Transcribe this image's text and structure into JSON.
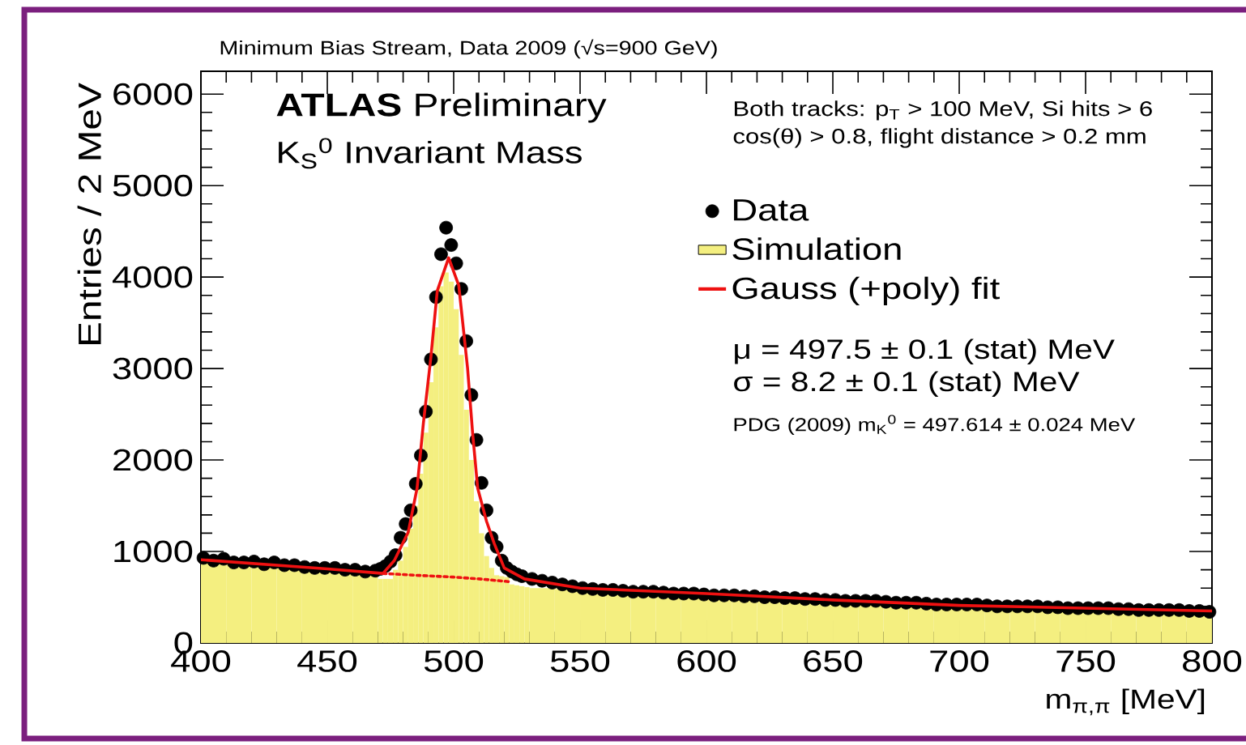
{
  "chart_data": {
    "type": "scatter",
    "title": "Minimum Bias Stream, Data 2009 (√s=900 GeV)",
    "xlabel": "m$_{π,π}$ [MeV]",
    "ylabel": "Entries / 2 MeV",
    "annotations": [
      "**ATLAS** Preliminary",
      "K$_{S}$$^{0}$ Invariant Mass",
      "Both tracks: p$_{T}$ > 100 MeV, Si hits > 6",
      "cos(θ) > 0.8, flight distance > 0.2 mm",
      "μ = 497.5 ± 0.1 (stat) MeV",
      "σ = 8.2 ± 0.1 (stat) MeV",
      "PDG (2009) m$_{K}$$^{0}$ = 497.614 ± 0.024 MeV"
    ],
    "xlim": [
      400,
      800
    ],
    "ylim": [
      0,
      6250
    ],
    "xticks": [
      400,
      450,
      500,
      550,
      600,
      650,
      700,
      750,
      800
    ],
    "yticks": [
      0,
      1000,
      2000,
      3000,
      4000,
      5000,
      6000
    ],
    "legend": "top right",
    "series": [
      {
        "name": "Data",
        "color": "#000000",
        "marker": "circle",
        "x": [
          401,
          405,
          409,
          413,
          417,
          421,
          425,
          429,
          433,
          437,
          441,
          445,
          449,
          453,
          457,
          461,
          465,
          469,
          471,
          473,
          475,
          477,
          479,
          481,
          483,
          485,
          487,
          489,
          491,
          493,
          495,
          497,
          499,
          501,
          503,
          505,
          507,
          509,
          511,
          513,
          515,
          517,
          519,
          521,
          523,
          525,
          527,
          531,
          535,
          539,
          543,
          547,
          551,
          555,
          559,
          563,
          567,
          571,
          575,
          579,
          583,
          587,
          591,
          595,
          599,
          603,
          607,
          611,
          615,
          619,
          623,
          627,
          631,
          635,
          639,
          643,
          647,
          651,
          655,
          659,
          663,
          667,
          671,
          675,
          679,
          683,
          687,
          691,
          695,
          699,
          703,
          707,
          711,
          715,
          719,
          723,
          727,
          731,
          735,
          739,
          743,
          747,
          751,
          755,
          759,
          763,
          767,
          771,
          775,
          779,
          783,
          787,
          791,
          795,
          799
        ],
        "values": [
          930,
          900,
          920,
          880,
          880,
          890,
          860,
          880,
          850,
          850,
          830,
          820,
          820,
          820,
          800,
          800,
          780,
          790,
          810,
          840,
          890,
          960,
          1150,
          1300,
          1450,
          1740,
          2050,
          2530,
          3100,
          3780,
          4250,
          4540,
          4350,
          4150,
          3870,
          3300,
          2710,
          2220,
          1750,
          1450,
          1150,
          1050,
          900,
          820,
          780,
          750,
          730,
          700,
          680,
          660,
          640,
          620,
          600,
          590,
          580,
          580,
          570,
          560,
          560,
          560,
          550,
          540,
          540,
          540,
          530,
          520,
          520,
          520,
          510,
          510,
          500,
          500,
          490,
          490,
          480,
          480,
          470,
          470,
          460,
          460,
          460,
          460,
          450,
          440,
          440,
          440,
          430,
          420,
          420,
          420,
          420,
          420,
          410,
          400,
          400,
          400,
          400,
          400,
          390,
          390,
          380,
          380,
          380,
          380,
          380,
          370,
          370,
          360,
          360,
          360,
          360,
          360,
          350,
          350,
          340
        ]
      },
      {
        "name": "Simulation",
        "type": "histogram",
        "color": "#f4ef80",
        "bins": [
          400,
          410,
          420,
          430,
          440,
          450,
          460,
          470,
          472,
          474,
          476,
          478,
          480,
          482,
          484,
          486,
          488,
          490,
          492,
          494,
          496,
          498,
          500,
          502,
          504,
          506,
          508,
          510,
          512,
          514,
          516,
          518,
          520,
          522,
          524,
          526,
          528,
          530,
          540,
          550,
          560,
          570,
          580,
          590,
          600,
          610,
          620,
          630,
          640,
          650,
          660,
          670,
          680,
          690,
          700,
          710,
          720,
          730,
          740,
          750,
          760,
          770,
          780,
          790,
          800
        ],
        "values": [
          900,
          880,
          860,
          840,
          820,
          800,
          780,
          700,
          700,
          700,
          800,
          900,
          1050,
          1250,
          1500,
          1850,
          2300,
          2850,
          3450,
          3900,
          4050,
          3950,
          3650,
          3150,
          2550,
          2000,
          1550,
          1200,
          950,
          820,
          740,
          730,
          720,
          640,
          630,
          620,
          610,
          600,
          590,
          580,
          570,
          560,
          550,
          540,
          530,
          520,
          500,
          490,
          480,
          470,
          460,
          450,
          440,
          430,
          420,
          410,
          400,
          390,
          390,
          380,
          370,
          360,
          360,
          350
        ]
      },
      {
        "name": "Gauss (+poly) fit",
        "type": "line",
        "color": "#ee1111",
        "x": [
          400,
          425,
          450,
          472,
          476.5,
          482,
          485.5,
          488,
          491,
          493.5,
          498,
          502,
          505.5,
          507.5,
          509.5,
          513,
          516,
          520,
          528,
          550,
          600,
          650,
          700,
          750,
          800
        ],
        "values": [
          910,
          860,
          810,
          760,
          900,
          1210,
          1690,
          2400,
          3130,
          3850,
          4210,
          3910,
          3000,
          2290,
          1690,
          1330,
          1090,
          820,
          700,
          600,
          540,
          470,
          410,
          380,
          350
        ]
      },
      {
        "type": "line",
        "color": "#ee1111",
        "line_style": "dotted",
        "x": [
          472,
          485,
          500,
          510,
          522
        ],
        "values": [
          760,
          740,
          720,
          700,
          670
        ]
      }
    ]
  }
}
